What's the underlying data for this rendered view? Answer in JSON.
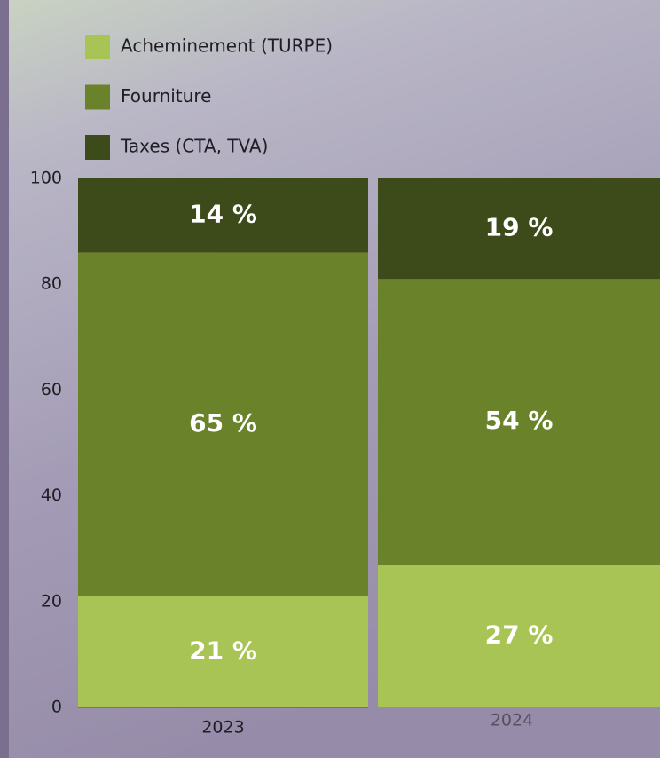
{
  "chart_data": {
    "type": "stacked-bar",
    "categories": [
      "2023",
      "2024"
    ],
    "series": [
      {
        "name": "Acheminement (TURPE)",
        "color": "#a8c455",
        "values": [
          21,
          27
        ],
        "value_labels": [
          "21 %",
          "27 %"
        ]
      },
      {
        "name": "Fourniture",
        "color": "#6a822a",
        "values": [
          65,
          54
        ],
        "value_labels": [
          "65 %",
          "54 %"
        ]
      },
      {
        "name": "Taxes (CTA, TVA)",
        "color": "#3d4a1a",
        "values": [
          14,
          19
        ],
        "value_labels": [
          "14 %",
          "19 %"
        ]
      }
    ],
    "ylim": [
      0,
      100
    ],
    "yticks": [
      0,
      20,
      40,
      60,
      80,
      100
    ]
  }
}
